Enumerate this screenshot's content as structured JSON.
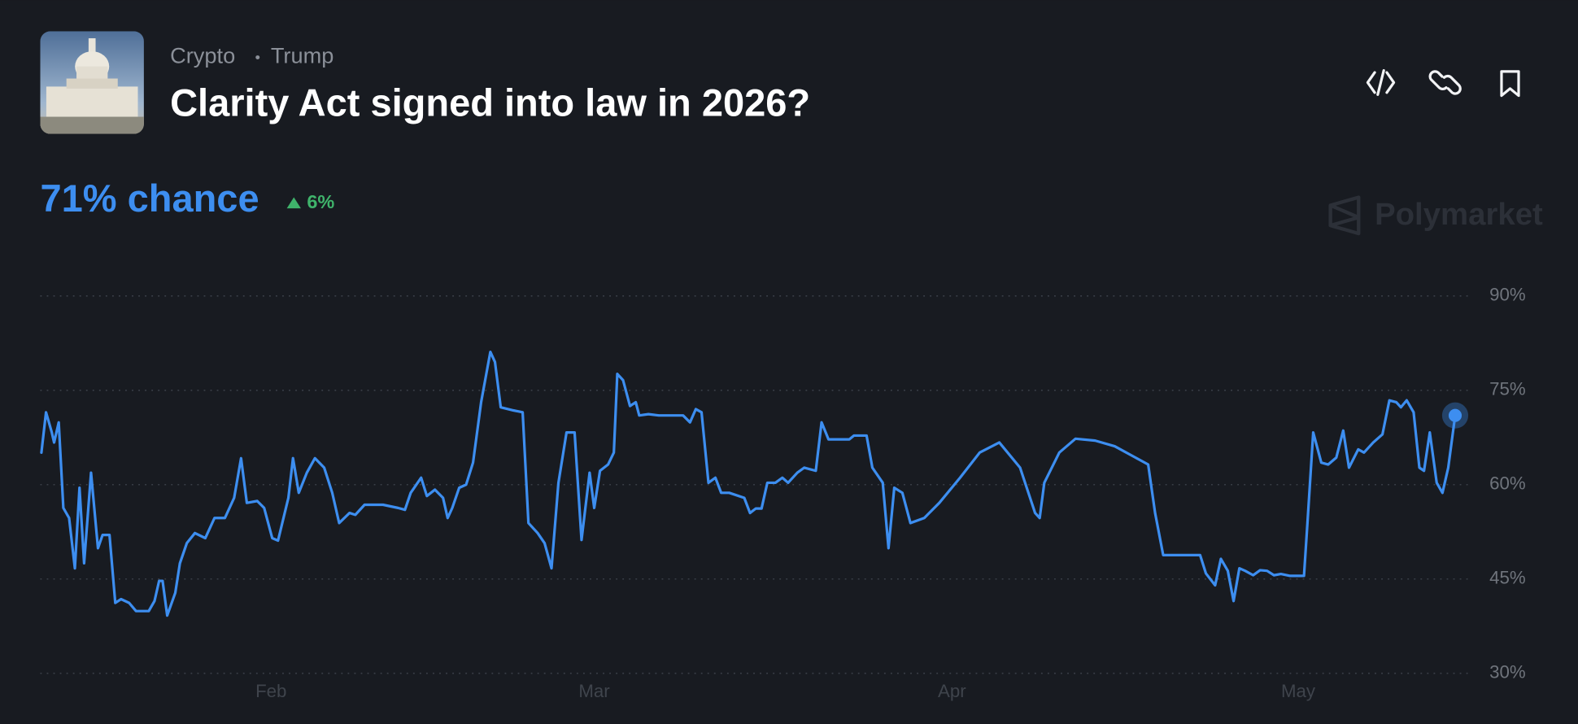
{
  "header": {
    "tags": [
      "Crypto",
      "Trump"
    ],
    "title": "Clarity Act signed into law in 2026?",
    "chance": "71% chance",
    "change": "6%",
    "brand": "Polymarket"
  },
  "chart_data": {
    "type": "line",
    "color": "#3d8ef0",
    "grid": true,
    "x": [
      12.1,
      12.5,
      13.0,
      13.2,
      13.6,
      14.0,
      14.5,
      15.0,
      15.4,
      15.8,
      16.4,
      17.0,
      17.4,
      18.0,
      18.5,
      19.0,
      19.7,
      20.3,
      21.4,
      21.9,
      22.3,
      22.6,
      23.0,
      23.7,
      24.1,
      24.7,
      25.4,
      26.3,
      27.1,
      28.0,
      28.8,
      29.4,
      29.9,
      30.8,
      31.4,
      32.1,
      32.6,
      33.5,
      33.9,
      34.4,
      35.1,
      35.8,
      36.6,
      37.3,
      37.9,
      38.8,
      39.3,
      40.1,
      41.7,
      43.0,
      43.6,
      44.1,
      45.0,
      45.5,
      46.2,
      46.9,
      47.3,
      47.7,
      48.3,
      48.9,
      49.5,
      50.2,
      51.0,
      51.4,
      51.9,
      53.0,
      53.8,
      54.3,
      55.1,
      55.7,
      56.3,
      56.9,
      57.6,
      58.3,
      58.9,
      59.6,
      60.0,
      60.5,
      61.2,
      61.7,
      62.0,
      62.5,
      63.1,
      63.6,
      63.9,
      64.7,
      65.6,
      66.4,
      67.7,
      68.3,
      68.8,
      69.3,
      69.9,
      70.5,
      71.0,
      71.7,
      73.0,
      73.5,
      74.0,
      74.5,
      75.0,
      75.7,
      76.3,
      76.8,
      77.6,
      78.2,
      79.2,
      79.7,
      80.3,
      82.1,
      82.5,
      83.6,
      84.1,
      85.0,
      85.5,
      86.0,
      86.7,
      87.4,
      88.6,
      89.9,
      91.7,
      93.4,
      95.1,
      96.9,
      98.2,
      98.6,
      99.0,
      100.3,
      101.7,
      103.4,
      105.1,
      106.9,
      108.0,
      108.6,
      109.3,
      110.8,
      112.5,
      113.0,
      113.8,
      114.3,
      114.9,
      115.4,
      115.9,
      116.4,
      117.1,
      117.7,
      118.3,
      118.9,
      119.5,
      120.3,
      121.5,
      121.8,
      122.3,
      123.0,
      123.6,
      124.3,
      124.9,
      125.4,
      126.2,
      126.7,
      127.5,
      128.3,
      128.9,
      129.5,
      129.9,
      130.4,
      131.0,
      131.5,
      131.9,
      132.4,
      133.0,
      133.5,
      134.0,
      134.6
    ],
    "values": [
      65.1,
      71.5,
      68.3,
      66.7,
      69.9,
      56.3,
      54.7,
      46.7,
      59.5,
      47.5,
      61.9,
      49.9,
      52.0,
      52.0,
      41.2,
      41.8,
      41.2,
      39.9,
      39.9,
      41.5,
      44.7,
      44.7,
      39.2,
      42.8,
      47.5,
      50.7,
      52.3,
      51.5,
      54.7,
      54.7,
      57.9,
      64.2,
      57.1,
      57.4,
      56.3,
      51.5,
      51.1,
      57.9,
      64.2,
      58.7,
      61.9,
      64.2,
      62.7,
      58.7,
      53.9,
      55.5,
      55.2,
      56.8,
      56.8,
      56.3,
      56.0,
      58.7,
      61.1,
      58.2,
      59.2,
      57.9,
      54.7,
      56.3,
      59.5,
      60.0,
      63.5,
      73.1,
      81.1,
      79.5,
      72.3,
      71.8,
      71.5,
      53.9,
      52.3,
      50.7,
      46.7,
      60.3,
      68.3,
      68.3,
      51.2,
      61.9,
      56.3,
      62.2,
      63.2,
      65.1,
      77.6,
      76.6,
      72.5,
      73.1,
      71.0,
      71.2,
      71.0,
      71.0,
      71.0,
      69.9,
      72.0,
      71.5,
      60.3,
      61.1,
      58.7,
      58.7,
      57.9,
      55.5,
      56.2,
      56.2,
      60.3,
      60.3,
      61.1,
      60.3,
      61.9,
      62.7,
      62.2,
      69.9,
      67.2,
      67.2,
      67.8,
      67.8,
      62.7,
      60.3,
      49.9,
      59.5,
      58.7,
      53.9,
      54.7,
      57.1,
      61.1,
      65.1,
      66.7,
      62.7,
      55.5,
      54.7,
      60.3,
      65.1,
      67.3,
      67.0,
      66.1,
      64.3,
      63.2,
      55.5,
      48.8,
      48.8,
      48.8,
      45.9,
      44.0,
      48.2,
      46.3,
      41.5,
      46.7,
      46.3,
      45.6,
      46.4,
      46.3,
      45.6,
      45.8,
      45.5,
      45.5,
      53.9,
      68.3,
      63.5,
      63.2,
      64.3,
      68.6,
      62.7,
      65.6,
      65.1,
      66.7,
      68.0,
      73.4,
      73.1,
      72.3,
      73.4,
      71.5,
      62.7,
      62.2,
      68.3,
      60.3,
      58.7,
      62.7,
      71
    ],
    "xlim": [
      12,
      136
    ],
    "xticks": [
      {
        "value": 32,
        "label": "Feb"
      },
      {
        "value": 60,
        "label": "Mar"
      },
      {
        "value": 91,
        "label": "Apr"
      },
      {
        "value": 121,
        "label": "May"
      }
    ],
    "ylim": [
      30,
      90
    ],
    "yticks": [
      {
        "value": 30,
        "label": "30%"
      },
      {
        "value": 45,
        "label": "45%"
      },
      {
        "value": 60,
        "label": "60%"
      },
      {
        "value": 75,
        "label": "75%"
      },
      {
        "value": 90,
        "label": "90%"
      }
    ]
  }
}
